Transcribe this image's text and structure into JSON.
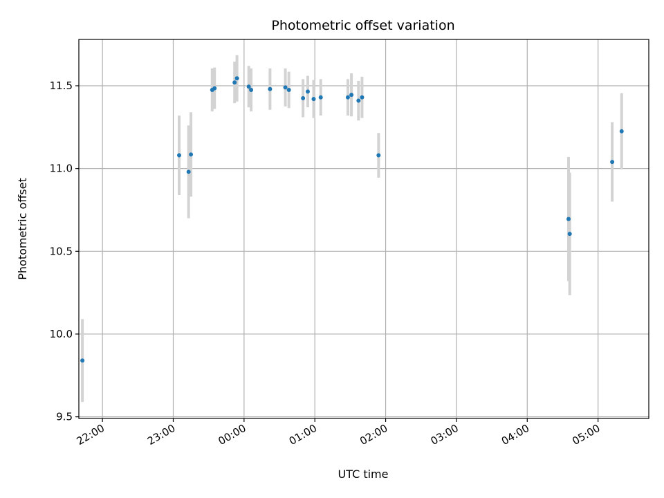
{
  "chart_data": {
    "type": "scatter",
    "title": "Photometric offset variation",
    "xlabel": "UTC time",
    "ylabel": "Photometric offset",
    "grid": true,
    "xlim": [
      "21:40",
      "05:43"
    ],
    "ylim": [
      9.49,
      11.78
    ],
    "x_ticks": [
      "22:00",
      "23:00",
      "00:00",
      "01:00",
      "02:00",
      "03:00",
      "04:00",
      "05:00"
    ],
    "y_ticks": [
      "9.5",
      "10.0",
      "10.5",
      "11.0",
      "11.5"
    ],
    "colors": {
      "point": "#1f77b4",
      "errorbar": "#d3d3d3",
      "grid": "#b0b0b0"
    },
    "points": [
      {
        "x": "21:43",
        "y": 9.84,
        "yerr": 0.25
      },
      {
        "x": "23:05",
        "y": 11.08,
        "yerr": 0.24
      },
      {
        "x": "23:13",
        "y": 10.98,
        "yerr": 0.28
      },
      {
        "x": "23:15",
        "y": 11.085,
        "yerr": 0.255
      },
      {
        "x": "23:33",
        "y": 11.475,
        "yerr": 0.13
      },
      {
        "x": "23:35",
        "y": 11.485,
        "yerr": 0.125
      },
      {
        "x": "23:52",
        "y": 11.52,
        "yerr": 0.125
      },
      {
        "x": "23:54",
        "y": 11.545,
        "yerr": 0.14
      },
      {
        "x": "00:04",
        "y": 11.495,
        "yerr": 0.125
      },
      {
        "x": "00:06",
        "y": 11.475,
        "yerr": 0.13
      },
      {
        "x": "00:22",
        "y": 11.48,
        "yerr": 0.125
      },
      {
        "x": "00:35",
        "y": 11.49,
        "yerr": 0.115
      },
      {
        "x": "00:38",
        "y": 11.475,
        "yerr": 0.11
      },
      {
        "x": "00:50",
        "y": 11.425,
        "yerr": 0.115
      },
      {
        "x": "00:54",
        "y": 11.465,
        "yerr": 0.095
      },
      {
        "x": "00:59",
        "y": 11.42,
        "yerr": 0.115
      },
      {
        "x": "01:05",
        "y": 11.43,
        "yerr": 0.11
      },
      {
        "x": "01:28",
        "y": 11.43,
        "yerr": 0.11
      },
      {
        "x": "01:31",
        "y": 11.445,
        "yerr": 0.13
      },
      {
        "x": "01:37",
        "y": 11.41,
        "yerr": 0.12
      },
      {
        "x": "01:40",
        "y": 11.43,
        "yerr": 0.125
      },
      {
        "x": "01:54",
        "y": 11.08,
        "yerr": 0.135
      },
      {
        "x": "04:35",
        "y": 10.695,
        "yerr": 0.375
      },
      {
        "x": "04:36",
        "y": 10.605,
        "yerr": 0.37
      },
      {
        "x": "05:12",
        "y": 11.04,
        "yerr": 0.24
      },
      {
        "x": "05:20",
        "y": 11.225,
        "yerr": 0.23
      }
    ]
  }
}
